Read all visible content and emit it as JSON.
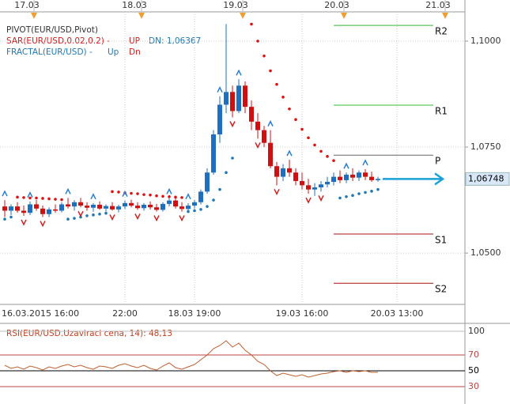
{
  "chart_data": [
    {
      "type": "candlestick",
      "legend": {
        "pivot": "PIVOT(EUR/USD,Pivot)",
        "sar": "SAR(EUR/USD,0.02,0.2) -",
        "sar_up": "UP",
        "sar_dn": "DN: 1,06367",
        "fractal": "FRACTAL(EUR/USD) -",
        "fractal_up": "Up",
        "fractal_dn": "Dn"
      },
      "categories": [
        "16.03.2015 16:00",
        null,
        null,
        null,
        null,
        null,
        null,
        null,
        null,
        null,
        null,
        null,
        null,
        null,
        null,
        null,
        null,
        null,
        null,
        "22:00",
        null,
        null,
        null,
        null,
        null,
        null,
        null,
        null,
        null,
        null,
        "18.03 19:00",
        null,
        null,
        null,
        null,
        null,
        null,
        null,
        null,
        null,
        null,
        null,
        null,
        null,
        null,
        null,
        null,
        "19.03 16:00",
        null,
        null,
        null,
        null,
        null,
        null,
        null,
        null,
        null,
        null,
        null,
        null,
        null,
        null,
        "20.03 13:00",
        null,
        null,
        null,
        null,
        null,
        null,
        null
      ],
      "top_dates": [
        null,
        null,
        null,
        null,
        "17.03",
        null,
        null,
        null,
        null,
        null,
        null,
        null,
        null,
        null,
        null,
        null,
        null,
        null,
        null,
        null,
        null,
        "18.03",
        null,
        null,
        null,
        null,
        null,
        null,
        null,
        null,
        null,
        null,
        null,
        null,
        null,
        null,
        null,
        "19.03",
        null,
        null,
        null,
        null,
        null,
        null,
        null,
        null,
        null,
        null,
        null,
        null,
        null,
        null,
        null,
        "20.03",
        null,
        null,
        null,
        null,
        null,
        null,
        null,
        null,
        null,
        null,
        null,
        null,
        null,
        null,
        null,
        "21.03"
      ],
      "candles": [
        [
          1.061,
          1.0625,
          1.0585,
          1.06
        ],
        [
          1.06,
          1.0615,
          1.059,
          1.061
        ],
        [
          1.061,
          1.062,
          1.0595,
          1.06
        ],
        [
          1.06,
          1.0612,
          1.0588,
          1.0595
        ],
        [
          1.0595,
          1.0622,
          1.059,
          1.0615
        ],
        [
          1.0615,
          1.0625,
          1.06,
          1.0605
        ],
        [
          1.0605,
          1.0612,
          1.0585,
          1.0592
        ],
        [
          1.0592,
          1.0608,
          1.0585,
          1.0603
        ],
        [
          1.0603,
          1.0615,
          1.0595,
          1.06
        ],
        [
          1.06,
          1.062,
          1.0596,
          1.0615
        ],
        [
          1.0615,
          1.063,
          1.0605,
          1.061
        ],
        [
          1.061,
          1.0625,
          1.06,
          1.062
        ],
        [
          1.062,
          1.063,
          1.0608,
          1.0612
        ],
        [
          1.0612,
          1.062,
          1.06,
          1.0607
        ],
        [
          1.0607,
          1.0618,
          1.0598,
          1.0614
        ],
        [
          1.0614,
          1.0622,
          1.0602,
          1.0605
        ],
        [
          1.0605,
          1.0615,
          1.0598,
          1.0611
        ],
        [
          1.0611,
          1.062,
          1.06,
          1.0603
        ],
        [
          1.0603,
          1.0614,
          1.0596,
          1.061
        ],
        [
          1.061,
          1.0624,
          1.0604,
          1.0618
        ],
        [
          1.0618,
          1.0626,
          1.0608,
          1.0612
        ],
        [
          1.0612,
          1.062,
          1.0602,
          1.0606
        ],
        [
          1.0606,
          1.0618,
          1.06,
          1.0614
        ],
        [
          1.0614,
          1.0622,
          1.0603,
          1.0608
        ],
        [
          1.0608,
          1.0616,
          1.0598,
          1.0602
        ],
        [
          1.0602,
          1.062,
          1.0598,
          1.0616
        ],
        [
          1.0616,
          1.063,
          1.061,
          1.0624
        ],
        [
          1.0624,
          1.0635,
          1.0605,
          1.061
        ],
        [
          1.061,
          1.062,
          1.0598,
          1.0604
        ],
        [
          1.0604,
          1.0618,
          1.0598,
          1.0612
        ],
        [
          1.0612,
          1.0625,
          1.0605,
          1.062
        ],
        [
          1.062,
          1.065,
          1.0615,
          1.0645
        ],
        [
          1.0645,
          1.07,
          1.064,
          1.069
        ],
        [
          1.069,
          1.079,
          1.0685,
          1.078
        ],
        [
          1.078,
          1.087,
          1.076,
          1.085
        ],
        [
          1.085,
          1.104,
          1.083,
          1.088
        ],
        [
          1.088,
          1.0895,
          1.082,
          1.0835
        ],
        [
          1.0835,
          1.091,
          1.083,
          1.0895
        ],
        [
          1.0895,
          1.0905,
          1.083,
          1.0845
        ],
        [
          1.0845,
          1.086,
          1.079,
          1.081
        ],
        [
          1.081,
          1.083,
          1.077,
          1.079
        ],
        [
          1.079,
          1.08,
          1.075,
          1.076
        ],
        [
          1.076,
          1.079,
          1.07,
          1.0705
        ],
        [
          1.0705,
          1.0715,
          1.066,
          1.068
        ],
        [
          1.068,
          1.071,
          1.067,
          1.07
        ],
        [
          1.07,
          1.072,
          1.068,
          1.069
        ],
        [
          1.069,
          1.07,
          1.066,
          1.067
        ],
        [
          1.067,
          1.069,
          1.065,
          1.066
        ],
        [
          1.066,
          1.0675,
          1.064,
          1.065
        ],
        [
          1.065,
          1.0665,
          1.0635,
          1.0655
        ],
        [
          1.0655,
          1.067,
          1.0645,
          1.0662
        ],
        [
          1.0662,
          1.068,
          1.0655,
          1.0668
        ],
        [
          1.0668,
          1.069,
          1.066,
          1.068
        ],
        [
          1.068,
          1.0695,
          1.0665,
          1.0672
        ],
        [
          1.0672,
          1.069,
          1.0665,
          1.0685
        ],
        [
          1.0685,
          1.07,
          1.067,
          1.0678
        ],
        [
          1.0678,
          1.0695,
          1.067,
          1.069
        ],
        [
          1.069,
          1.0698,
          1.0672,
          1.068
        ],
        [
          1.068,
          1.0692,
          1.0668,
          1.0672
        ],
        [
          1.0672,
          1.068,
          1.0668,
          1.0675
        ],
        null,
        null,
        null,
        null,
        null,
        null,
        null,
        null,
        null,
        null
      ],
      "sar_down": [
        null,
        null,
        1.0632,
        1.0631,
        1.063,
        1.063,
        1.0629,
        1.0628,
        1.0627,
        1.0626,
        null,
        null,
        null,
        null,
        null,
        null,
        null,
        1.0645,
        1.0644,
        1.0642,
        1.0641,
        1.064,
        1.0638,
        1.0637,
        1.0635,
        1.0634,
        1.0633,
        1.0632,
        1.0631,
        null,
        null,
        null,
        null,
        null,
        null,
        null,
        null,
        null,
        null,
        1.104,
        1.1,
        1.0965,
        1.093,
        1.0898,
        1.0868,
        1.084,
        1.0815,
        1.0792,
        1.0772,
        1.0755,
        1.074,
        1.0728,
        1.0718,
        null,
        null,
        null,
        null,
        null,
        null,
        null,
        null,
        null,
        null,
        null,
        null,
        null,
        null,
        null,
        null,
        null
      ],
      "sar_up": [
        1.058,
        1.0585,
        null,
        null,
        null,
        null,
        null,
        null,
        null,
        null,
        1.058,
        1.0582,
        1.0585,
        1.0588,
        1.059,
        1.0592,
        1.0594,
        null,
        null,
        null,
        null,
        null,
        null,
        null,
        null,
        null,
        null,
        null,
        null,
        1.0598,
        1.06,
        1.0603,
        1.061,
        1.0625,
        1.065,
        1.069,
        1.0724,
        null,
        null,
        null,
        null,
        null,
        null,
        null,
        null,
        null,
        null,
        null,
        null,
        null,
        null,
        null,
        null,
        1.063,
        1.0633,
        1.0636,
        1.064,
        1.0643,
        1.0646,
        1.065,
        null,
        null,
        null,
        null,
        null,
        null,
        null,
        null,
        null,
        null
      ],
      "fractal_up": [
        1.0625,
        null,
        null,
        null,
        1.0622,
        null,
        null,
        null,
        null,
        null,
        1.063,
        null,
        null,
        null,
        1.0618,
        null,
        null,
        null,
        null,
        1.0624,
        null,
        null,
        null,
        null,
        null,
        null,
        1.063,
        null,
        null,
        1.0618,
        null,
        null,
        null,
        null,
        1.087,
        null,
        null,
        1.091,
        null,
        null,
        null,
        null,
        1.079,
        null,
        null,
        1.072,
        null,
        null,
        null,
        null,
        null,
        null,
        null,
        null,
        1.069,
        null,
        null,
        1.0698,
        null,
        null,
        null,
        null,
        null,
        null,
        null,
        null,
        null,
        null,
        null,
        null
      ],
      "fractal_down": [
        null,
        null,
        null,
        1.0588,
        null,
        null,
        1.0585,
        null,
        null,
        null,
        null,
        null,
        1.0608,
        null,
        null,
        null,
        null,
        1.06,
        null,
        null,
        null,
        1.0602,
        null,
        null,
        1.0598,
        null,
        null,
        null,
        1.0598,
        null,
        null,
        null,
        null,
        null,
        null,
        null,
        1.082,
        null,
        null,
        null,
        1.077,
        null,
        null,
        1.066,
        null,
        null,
        null,
        null,
        1.064,
        null,
        1.0645,
        null,
        null,
        null,
        null,
        null,
        null,
        null,
        null,
        null,
        null,
        null,
        null,
        null,
        null,
        null,
        null,
        null,
        null,
        null
      ],
      "pivots": [
        {
          "name": "R2",
          "value": 1.1037,
          "color": "#33bb33"
        },
        {
          "name": "R1",
          "value": 1.0849,
          "color": "#33bb33"
        },
        {
          "name": "P",
          "value": 1.0731,
          "color": "#666666"
        },
        {
          "name": "S1",
          "value": 1.0545,
          "color": "#aa1111"
        },
        {
          "name": "S2",
          "value": 1.0429,
          "color": "#aa1111"
        }
      ],
      "current": {
        "value": 1.06748,
        "label": "1,06748"
      },
      "ylim": [
        1.0379,
        1.1069
      ],
      "yticks": [
        {
          "value": 1.1,
          "label": "1,1000"
        },
        {
          "value": 1.075,
          "label": "1,0750"
        },
        {
          "value": 1.05,
          "label": "1,0500"
        }
      ],
      "grid": true,
      "up_color": "#1e6fc0",
      "down_color": "#d01010",
      "sar_up_color": "#1f78b4",
      "sar_down_color": "#e01010",
      "fractal_up_color": "#2a7fd0",
      "fractal_down_color": "#d02020",
      "current_color": "#1aa0d8"
    },
    {
      "type": "line",
      "title": "RSI(EUR/USD.Uzaviraci cena, 14): 48,13",
      "values": [
        57,
        53,
        55,
        52,
        56,
        54,
        51,
        55,
        53,
        56,
        58,
        55,
        57,
        54,
        52,
        56,
        55,
        53,
        57,
        59,
        56,
        54,
        57,
        53,
        51,
        56,
        60,
        54,
        52,
        55,
        58,
        64,
        70,
        78,
        82,
        88,
        80,
        85,
        76,
        70,
        62,
        58,
        50,
        44,
        47,
        45,
        43,
        45,
        42,
        44,
        46,
        47,
        49,
        50,
        48,
        50,
        49,
        50,
        48,
        48.13
      ],
      "color": "#c06030",
      "ylim": [
        12,
        106
      ],
      "yticks": [
        100,
        70,
        50,
        30
      ],
      "ytick_colors": [
        "#bbbbbb",
        "#c04040",
        "#000000",
        "#c04040"
      ]
    }
  ]
}
